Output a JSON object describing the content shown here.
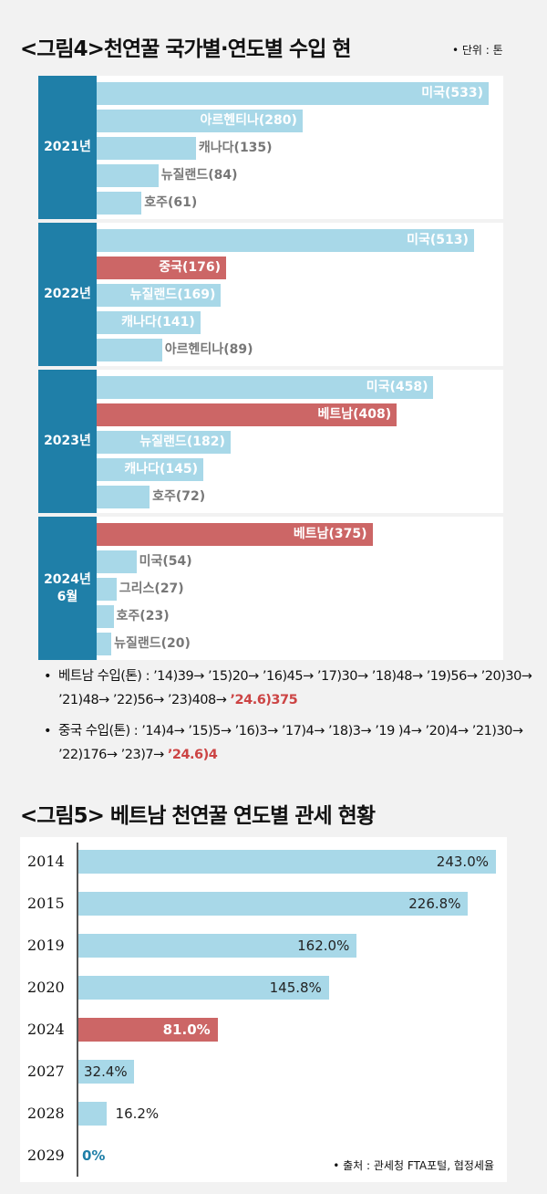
{
  "title1": "<그림4>천연꿀 국가별·연도별 수입 현",
  "unit": "• 단위 : 톤",
  "chart_data": [
    {
      "type": "bar",
      "title": "<그림4>천연꿀 국가별·연도별 수입 현",
      "unit": "단위 : 톤",
      "groups": [
        {
          "year": "2021년",
          "bars": [
            {
              "country": "미국",
              "value": 533,
              "highlight": false
            },
            {
              "country": "아르헨티나",
              "value": 280,
              "highlight": false
            },
            {
              "country": "캐나다",
              "value": 135,
              "highlight": false
            },
            {
              "country": "뉴질랜드",
              "value": 84,
              "highlight": false
            },
            {
              "country": "호주",
              "value": 61,
              "highlight": false
            }
          ]
        },
        {
          "year": "2022년",
          "bars": [
            {
              "country": "미국",
              "value": 513,
              "highlight": false
            },
            {
              "country": "중국",
              "value": 176,
              "highlight": true
            },
            {
              "country": "뉴질랜드",
              "value": 169,
              "highlight": false
            },
            {
              "country": "캐나다",
              "value": 141,
              "highlight": false
            },
            {
              "country": "아르헨티나",
              "value": 89,
              "highlight": false
            }
          ]
        },
        {
          "year": "2023년",
          "bars": [
            {
              "country": "미국",
              "value": 458,
              "highlight": false
            },
            {
              "country": "베트남",
              "value": 408,
              "highlight": true
            },
            {
              "country": "뉴질랜드",
              "value": 182,
              "highlight": false
            },
            {
              "country": "캐나다",
              "value": 145,
              "highlight": false
            },
            {
              "country": "호주",
              "value": 72,
              "highlight": false
            }
          ]
        },
        {
          "year": "2024년\n6월",
          "bars": [
            {
              "country": "베트남",
              "value": 375,
              "highlight": true
            },
            {
              "country": "미국",
              "value": 54,
              "highlight": false
            },
            {
              "country": "그리스",
              "value": 27,
              "highlight": false
            },
            {
              "country": "호주",
              "value": 23,
              "highlight": false
            },
            {
              "country": "뉴질랜드",
              "value": 20,
              "highlight": false
            }
          ]
        }
      ]
    },
    {
      "type": "bar",
      "orientation": "horizontal",
      "title": "<그림5> 베트남 천연꿀 연도별 관세 현황",
      "categories": [
        "2014",
        "2015",
        "2019",
        "2020",
        "2024",
        "2027",
        "2028",
        "2029"
      ],
      "values": [
        243.0,
        226.8,
        162.0,
        145.8,
        81.0,
        32.4,
        16.2,
        0
      ],
      "labels": [
        "243.0%",
        "226.8%",
        "162.0%",
        "145.8%",
        "81.0%",
        "32.4%",
        "16.2%",
        "0%"
      ],
      "highlight": [
        false,
        false,
        false,
        false,
        true,
        false,
        false,
        false
      ]
    }
  ],
  "notes": [
    {
      "text": "베트남 수입(톤) : ’14)39→ ’15)20→ ’16)45→ ’17)30→ ’18)48→ ’19)56→ ’20)30→ ’21)48→ ’22)56→ ’23)408→ ",
      "highlight": "’24.6)375"
    },
    {
      "text": "중국 수입(톤) : ’14)4→ ’15)5→ ’16)3→ ’17)4→ ’18)3→ ’19 )4→ ’20)4→ ’21)30→ ’22)176→ ’23)7→ ",
      "highlight": "’24.6)4"
    }
  ],
  "title2": "<그림5> 베트남 천연꿀 연도별 관세 현황",
  "source": "• 출처 : 관세청 FTA포털, 협정세율",
  "colors": {
    "blue_bar": "#a8d8e8",
    "red_bar": "#cc6666",
    "year_block": "#1f7fa8"
  }
}
